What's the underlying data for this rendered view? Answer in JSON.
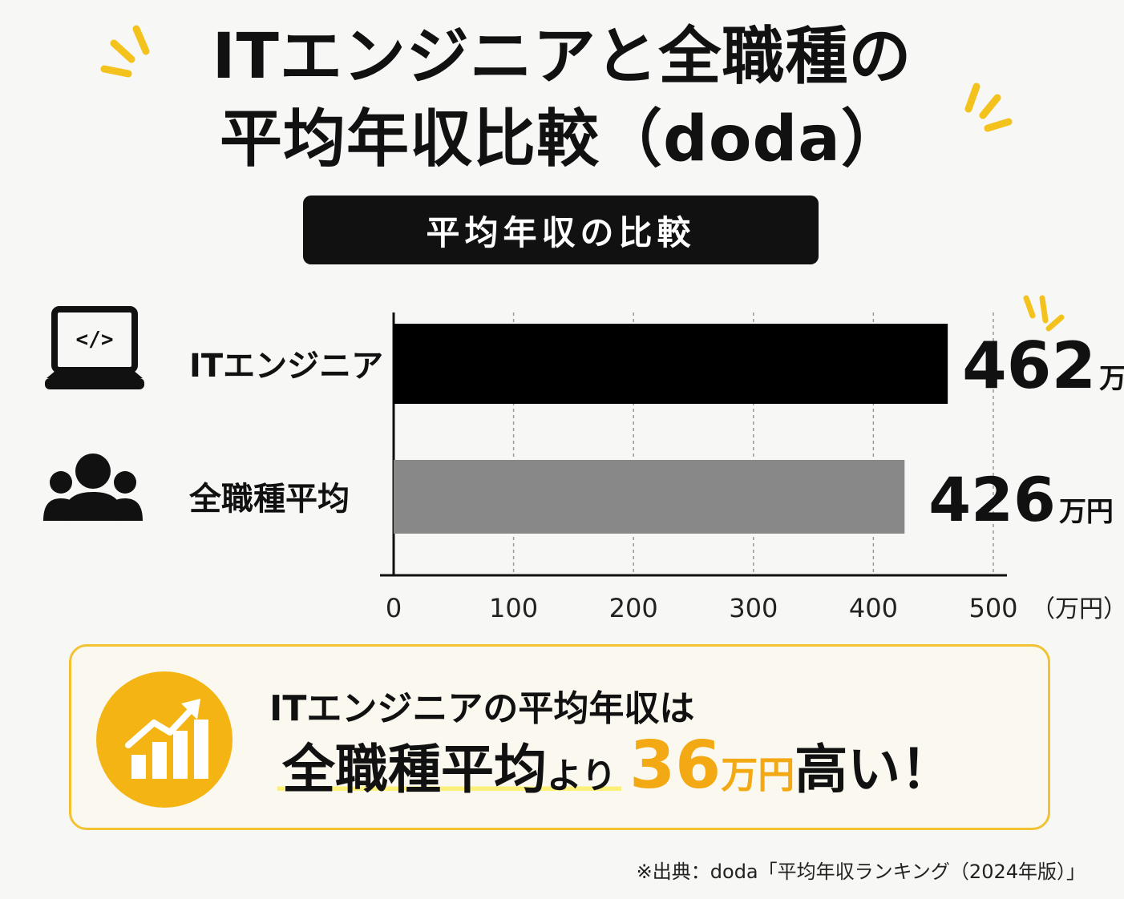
{
  "title": {
    "line1": "ITエンジニアと全職種の",
    "line2": "平均年収比較（doda）"
  },
  "subtitle": "平均年収の比較",
  "colors": {
    "accent": "#f3b414",
    "bar_primary": "#000000",
    "bar_secondary": "#888888"
  },
  "icons": {
    "category_0": "laptop-code-icon",
    "category_1": "group-people-icon",
    "summary": "growth-chart-icon"
  },
  "chart_data": {
    "type": "bar",
    "orientation": "horizontal",
    "categories": [
      "ITエンジニア",
      "全職種平均"
    ],
    "values": [
      462,
      426
    ],
    "value_unit": "万円",
    "xlim": [
      0,
      500
    ],
    "ticks": [
      "0",
      "100",
      "200",
      "300",
      "400",
      "500"
    ],
    "xlabel": "（万円）",
    "grid": "vertical-dashed"
  },
  "summary": {
    "line1": "ITエンジニアの平均年収は",
    "highlight": "全職種平均",
    "connector": "より",
    "diff_value": "36",
    "diff_unit": "万円",
    "tail": "高い！"
  },
  "source": "※出典：doda「平均年収ランキング（2024年版）」"
}
